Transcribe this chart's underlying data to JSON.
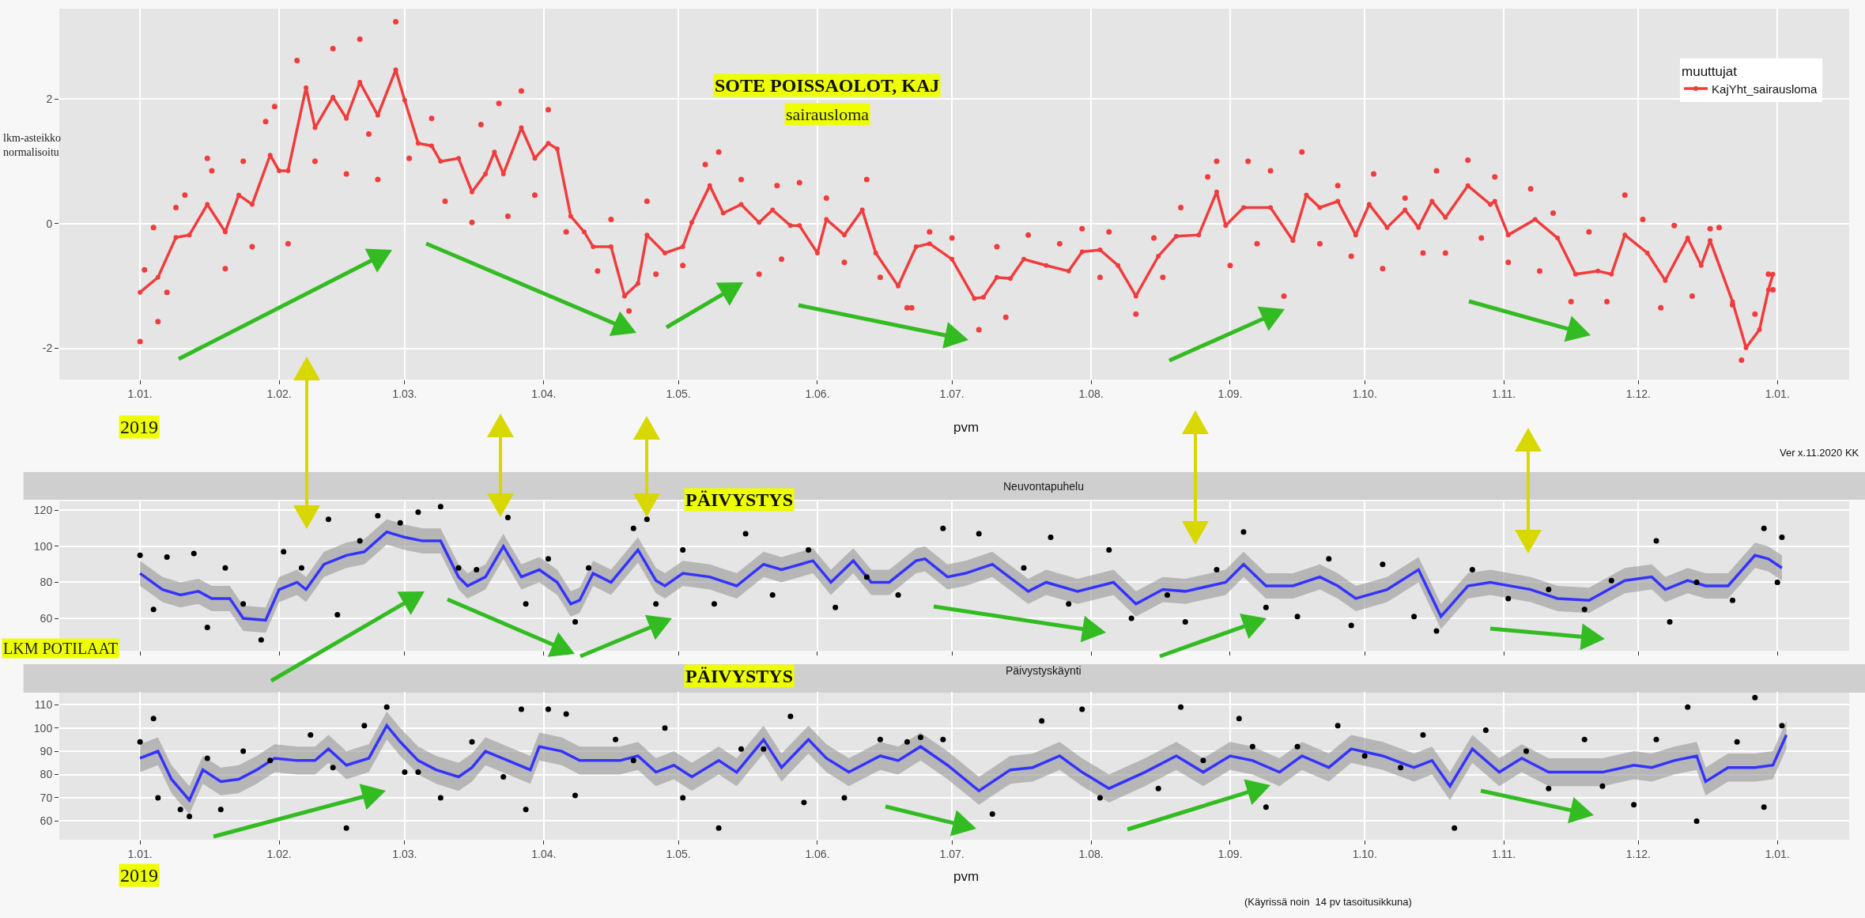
{
  "chart_data": [
    {
      "type": "line",
      "title": "SOTE POISSAOLOT, KAJ",
      "subtitle": "sairausloma",
      "xlabel": "pvm",
      "ylabel": "lkm-asteikko\nnormalisoitu",
      "legend_title": "muuttujat",
      "annotations": [
        "2019",
        "Ver x.11.2020 KK"
      ],
      "xlim": [
        "2018-12-14",
        "2020-01-17"
      ],
      "ylim": [
        -2.5,
        3.45
      ],
      "yticks": [
        -2,
        0,
        2
      ],
      "xticks": [
        {
          "value": "2019-01-01",
          "label": "1.01."
        },
        {
          "value": "2019-02-01",
          "label": "1.02."
        },
        {
          "value": "2019-03-01",
          "label": "1.03."
        },
        {
          "value": "2019-04-01",
          "label": "1.04."
        },
        {
          "value": "2019-05-01",
          "label": "1.05."
        },
        {
          "value": "2019-06-01",
          "label": "1.06."
        },
        {
          "value": "2019-07-01",
          "label": "1.07."
        },
        {
          "value": "2019-08-01",
          "label": "1.08."
        },
        {
          "value": "2019-09-01",
          "label": "1.09."
        },
        {
          "value": "2019-10-01",
          "label": "1.10."
        },
        {
          "value": "2019-11-01",
          "label": "1.11."
        },
        {
          "value": "2019-12-01",
          "label": "1.12."
        },
        {
          "value": "2020-01-01",
          "label": "1.01."
        }
      ],
      "grid": true,
      "legend": "top right",
      "series": [
        {
          "type": "scatter",
          "marker": "circle",
          "color": "#f03c3c",
          "x": [
            "2019-01-01",
            "2019-01-02",
            "2019-01-04",
            "2019-01-05",
            "2019-01-07",
            "2019-01-09",
            "2019-01-11",
            "2019-01-16",
            "2019-01-17",
            "2019-01-20",
            "2019-01-24",
            "2019-01-26",
            "2019-01-29",
            "2019-01-31",
            "2019-02-03",
            "2019-02-05",
            "2019-02-09",
            "2019-02-13",
            "2019-02-16",
            "2019-02-19",
            "2019-02-21",
            "2019-02-23",
            "2019-02-27",
            "2019-03-02",
            "2019-03-07",
            "2019-03-10",
            "2019-03-16",
            "2019-03-18",
            "2019-03-22",
            "2019-03-24",
            "2019-03-27",
            "2019-03-30",
            "2019-04-02",
            "2019-04-06",
            "2019-04-13",
            "2019-04-16",
            "2019-04-20",
            "2019-04-24",
            "2019-04-26",
            "2019-05-02",
            "2019-05-07",
            "2019-05-10",
            "2019-05-15",
            "2019-05-19",
            "2019-05-23",
            "2019-05-24",
            "2019-05-28",
            "2019-06-03",
            "2019-06-07",
            "2019-06-12",
            "2019-06-15",
            "2019-06-21",
            "2019-06-22",
            "2019-06-26",
            "2019-07-01",
            "2019-07-07",
            "2019-07-11",
            "2019-07-13",
            "2019-07-18",
            "2019-07-25",
            "2019-07-30",
            "2019-08-03",
            "2019-08-05",
            "2019-08-11",
            "2019-08-15",
            "2019-08-17",
            "2019-08-21",
            "2019-08-27",
            "2019-08-29",
            "2019-09-01",
            "2019-09-05",
            "2019-09-07",
            "2019-09-10",
            "2019-09-13",
            "2019-09-17",
            "2019-09-21",
            "2019-09-25",
            "2019-09-28",
            "2019-10-03",
            "2019-10-05",
            "2019-10-10",
            "2019-10-14",
            "2019-10-17",
            "2019-10-19",
            "2019-10-24",
            "2019-10-27",
            "2019-10-30",
            "2019-11-02",
            "2019-11-07",
            "2019-11-09",
            "2019-11-12",
            "2019-11-16",
            "2019-11-20",
            "2019-11-24",
            "2019-11-28",
            "2019-12-02",
            "2019-12-06",
            "2019-12-09",
            "2019-12-13",
            "2019-12-17",
            "2019-12-19",
            "2019-12-22",
            "2019-12-24",
            "2019-12-27",
            "2019-12-30",
            "2019-12-31"
          ],
          "values": [
            -1.89,
            -0.74,
            -0.06,
            -1.57,
            -1.1,
            0.26,
            0.46,
            1.05,
            0.85,
            -0.72,
            1.0,
            -0.37,
            1.64,
            1.88,
            -0.32,
            2.62,
            1.0,
            2.81,
            0.8,
            2.96,
            1.44,
            0.71,
            3.24,
            1.05,
            1.69,
            0.36,
            0.02,
            1.59,
            1.93,
            0.12,
            2.13,
            0.46,
            1.83,
            -0.13,
            -0.76,
            0.07,
            -1.4,
            0.36,
            -0.81,
            -0.67,
            0.95,
            1.15,
            0.71,
            -0.81,
            0.61,
            -0.57,
            0.66,
            0.41,
            -0.62,
            0.71,
            -0.86,
            -1.35,
            -1.35,
            -0.13,
            -0.23,
            -1.7,
            -0.37,
            -1.5,
            -0.18,
            -0.32,
            -0.08,
            -0.86,
            -0.13,
            -1.45,
            -0.23,
            -0.86,
            0.26,
            0.75,
            1.0,
            -0.67,
            1.0,
            -0.32,
            0.85,
            -1.16,
            1.15,
            -0.32,
            0.61,
            -0.52,
            0.8,
            -0.72,
            0.41,
            -0.47,
            0.85,
            -0.47,
            1.02,
            -0.23,
            0.75,
            -0.62,
            0.56,
            -0.76,
            0.17,
            -1.25,
            -0.13,
            -1.25,
            0.46,
            0.07,
            -1.35,
            -0.03,
            -1.16,
            -0.08,
            -0.06,
            -1.3,
            -2.19,
            -1.45,
            -0.81,
            -1.06
          ]
        },
        {
          "type": "line",
          "name": "KajYht_sairausloma",
          "marker": "circle",
          "color": "#f03c3c",
          "x": [
            "2019-01-01",
            "2019-01-05",
            "2019-01-09",
            "2019-01-12",
            "2019-01-16",
            "2019-01-20",
            "2019-01-23",
            "2019-01-26",
            "2019-01-30",
            "2019-02-01",
            "2019-02-03",
            "2019-02-07",
            "2019-02-09",
            "2019-02-13",
            "2019-02-16",
            "2019-02-19",
            "2019-02-23",
            "2019-02-27",
            "2019-03-01",
            "2019-03-04",
            "2019-03-07",
            "2019-03-09",
            "2019-03-13",
            "2019-03-16",
            "2019-03-19",
            "2019-03-21",
            "2019-03-23",
            "2019-03-27",
            "2019-03-30",
            "2019-04-02",
            "2019-04-04",
            "2019-04-07",
            "2019-04-10",
            "2019-04-12",
            "2019-04-16",
            "2019-04-19",
            "2019-04-22",
            "2019-04-24",
            "2019-04-28",
            "2019-05-02",
            "2019-05-04",
            "2019-05-08",
            "2019-05-11",
            "2019-05-15",
            "2019-05-19",
            "2019-05-22",
            "2019-05-26",
            "2019-05-28",
            "2019-06-01",
            "2019-06-03",
            "2019-06-07",
            "2019-06-11",
            "2019-06-14",
            "2019-06-19",
            "2019-06-23",
            "2019-06-26",
            "2019-07-01",
            "2019-07-06",
            "2019-07-08",
            "2019-07-11",
            "2019-07-14",
            "2019-07-17",
            "2019-07-22",
            "2019-07-27",
            "2019-07-30",
            "2019-08-03",
            "2019-08-07",
            "2019-08-11",
            "2019-08-16",
            "2019-08-20",
            "2019-08-25",
            "2019-08-29",
            "2019-08-31",
            "2019-09-04",
            "2019-09-10",
            "2019-09-15",
            "2019-09-18",
            "2019-09-21",
            "2019-09-25",
            "2019-09-29",
            "2019-10-02",
            "2019-10-06",
            "2019-10-10",
            "2019-10-13",
            "2019-10-16",
            "2019-10-19",
            "2019-10-24",
            "2019-10-29",
            "2019-10-30",
            "2019-11-02",
            "2019-11-08",
            "2019-11-13",
            "2019-11-17",
            "2019-11-22",
            "2019-11-25",
            "2019-11-28",
            "2019-12-03",
            "2019-12-07",
            "2019-12-12",
            "2019-12-15",
            "2019-12-17",
            "2019-12-22",
            "2019-12-25",
            "2019-12-28",
            "2019-12-30",
            "2019-12-31"
          ],
          "values": [
            -1.1,
            -0.86,
            -0.22,
            -0.18,
            0.31,
            -0.13,
            0.46,
            0.31,
            1.1,
            0.85,
            0.85,
            2.18,
            1.54,
            2.03,
            1.69,
            2.27,
            1.74,
            2.47,
            1.98,
            1.29,
            1.25,
            1.0,
            1.05,
            0.51,
            0.8,
            1.15,
            0.8,
            1.54,
            1.05,
            1.29,
            1.2,
            0.12,
            -0.13,
            -0.37,
            -0.37,
            -1.16,
            -0.96,
            -0.18,
            -0.47,
            -0.37,
            0.02,
            0.61,
            0.17,
            0.31,
            0.02,
            0.22,
            -0.03,
            -0.03,
            -0.47,
            0.07,
            -0.18,
            0.22,
            -0.47,
            -1.0,
            -0.37,
            -0.32,
            -0.57,
            -1.2,
            -1.18,
            -0.86,
            -0.88,
            -0.57,
            -0.67,
            -0.76,
            -0.45,
            -0.42,
            -0.67,
            -1.16,
            -0.52,
            -0.2,
            -0.18,
            0.51,
            -0.03,
            0.26,
            0.26,
            -0.27,
            0.46,
            0.26,
            0.36,
            -0.18,
            0.31,
            -0.06,
            0.22,
            -0.06,
            0.36,
            0.1,
            0.61,
            0.31,
            0.36,
            -0.18,
            0.07,
            -0.23,
            -0.81,
            -0.76,
            -0.81,
            -0.18,
            -0.47,
            -0.91,
            -0.23,
            -0.67,
            -0.27,
            -1.25,
            -1.99,
            -1.7,
            -1.06,
            -0.81
          ]
        }
      ]
    },
    {
      "type": "line",
      "title": "PÄIVYSTYS",
      "subtitle": "Neuvontapuhelu",
      "ylabel": "LKM POTILAAT",
      "xlim": [
        "2018-12-14",
        "2020-01-17"
      ],
      "ylim": [
        42,
        125
      ],
      "yticks": [
        60,
        80,
        100,
        120
      ],
      "tick_labels": "y",
      "xticks": [
        {
          "value": "2019-01-01",
          "label": null
        },
        {
          "value": "2019-02-01",
          "label": null
        },
        {
          "value": "2019-03-01",
          "label": null
        },
        {
          "value": "2019-04-01",
          "label": null
        },
        {
          "value": "2019-05-01",
          "label": null
        },
        {
          "value": "2019-06-01",
          "label": null
        },
        {
          "value": "2019-07-01",
          "label": null
        },
        {
          "value": "2019-08-01",
          "label": null
        },
        {
          "value": "2019-09-01",
          "label": null
        },
        {
          "value": "2019-10-01",
          "label": null
        },
        {
          "value": "2019-11-01",
          "label": null
        },
        {
          "value": "2019-12-01",
          "label": null
        },
        {
          "value": "2020-01-01",
          "label": null
        }
      ],
      "grid": true,
      "series": [
        {
          "type": "line",
          "color": "#3333ff",
          "x": [
            "2019-01-01",
            "2019-01-06",
            "2019-01-10",
            "2019-01-14",
            "2019-01-17",
            "2019-01-21",
            "2019-01-24",
            "2019-01-29",
            "2019-02-01",
            "2019-02-05",
            "2019-02-07",
            "2019-02-11",
            "2019-02-16",
            "2019-02-20",
            "2019-02-25",
            "2019-03-01",
            "2019-03-05",
            "2019-03-09",
            "2019-03-13",
            "2019-03-15",
            "2019-03-19",
            "2019-03-23",
            "2019-03-27",
            "2019-03-31",
            "2019-04-04",
            "2019-04-07",
            "2019-04-09",
            "2019-04-12",
            "2019-04-16",
            "2019-04-22",
            "2019-04-26",
            "2019-04-28",
            "2019-05-02",
            "2019-05-08",
            "2019-05-14",
            "2019-05-20",
            "2019-05-24",
            "2019-05-31",
            "2019-06-04",
            "2019-06-09",
            "2019-06-13",
            "2019-06-17",
            "2019-06-23",
            "2019-06-25",
            "2019-06-30",
            "2019-07-04",
            "2019-07-10",
            "2019-07-18",
            "2019-07-22",
            "2019-07-29",
            "2019-08-06",
            "2019-08-11",
            "2019-08-17",
            "2019-08-22",
            "2019-08-31",
            "2019-09-04",
            "2019-09-09",
            "2019-09-15",
            "2019-09-21",
            "2019-09-25",
            "2019-09-29",
            "2019-10-06",
            "2019-10-13",
            "2019-10-18",
            "2019-10-24",
            "2019-10-29",
            "2019-11-07",
            "2019-11-13",
            "2019-11-20",
            "2019-11-28",
            "2019-12-04",
            "2019-12-07",
            "2019-12-12",
            "2019-12-16",
            "2019-12-21",
            "2019-12-27",
            "2019-12-30",
            "2020-01-02"
          ],
          "values": [
            85,
            76,
            73,
            75,
            71,
            71,
            60,
            59,
            76,
            80,
            76,
            90,
            95,
            97,
            108,
            105,
            103,
            103,
            83,
            78,
            83,
            100,
            83,
            87,
            80,
            68,
            70,
            85,
            80,
            98,
            81,
            78,
            85,
            83,
            78,
            90,
            87,
            92,
            80,
            92,
            80,
            80,
            92,
            93,
            83,
            85,
            90,
            75,
            80,
            75,
            80,
            68,
            76,
            75,
            80,
            90,
            78,
            78,
            83,
            78,
            71,
            76,
            87,
            61,
            78,
            80,
            76,
            71,
            70,
            81,
            83,
            76,
            81,
            78,
            78,
            95,
            93,
            88
          ],
          "lower": [
            78,
            69,
            66,
            68,
            64,
            64,
            53,
            52,
            69,
            73,
            69,
            83,
            88,
            90,
            101,
            98,
            96,
            96,
            76,
            71,
            76,
            93,
            76,
            80,
            73,
            61,
            63,
            78,
            73,
            91,
            74,
            71,
            78,
            76,
            71,
            83,
            80,
            85,
            73,
            85,
            73,
            73,
            85,
            86,
            76,
            78,
            83,
            68,
            73,
            68,
            73,
            61,
            69,
            68,
            73,
            83,
            71,
            71,
            76,
            71,
            64,
            69,
            80,
            54,
            71,
            73,
            69,
            64,
            63,
            74,
            76,
            69,
            74,
            71,
            71,
            88,
            86,
            81
          ],
          "upper": [
            92,
            83,
            80,
            82,
            78,
            78,
            67,
            66,
            83,
            87,
            83,
            97,
            102,
            104,
            115,
            112,
            110,
            110,
            90,
            85,
            90,
            107,
            90,
            94,
            87,
            75,
            77,
            92,
            87,
            105,
            88,
            85,
            92,
            90,
            85,
            97,
            94,
            99,
            87,
            99,
            87,
            87,
            99,
            100,
            90,
            92,
            97,
            82,
            87,
            82,
            87,
            75,
            83,
            82,
            87,
            97,
            85,
            85,
            90,
            85,
            78,
            83,
            94,
            68,
            85,
            87,
            83,
            78,
            77,
            88,
            90,
            83,
            88,
            85,
            85,
            102,
            100,
            95
          ]
        },
        {
          "type": "scatter",
          "marker": "circle",
          "color": "#000000",
          "x": [
            "2019-01-01",
            "2019-01-04",
            "2019-01-07",
            "2019-01-13",
            "2019-01-16",
            "2019-01-20",
            "2019-01-24",
            "2019-01-28",
            "2019-02-02",
            "2019-02-06",
            "2019-02-12",
            "2019-02-14",
            "2019-02-19",
            "2019-02-23",
            "2019-02-28",
            "2019-03-04",
            "2019-03-09",
            "2019-03-13",
            "2019-03-17",
            "2019-03-24",
            "2019-03-28",
            "2019-04-02",
            "2019-04-08",
            "2019-04-11",
            "2019-04-21",
            "2019-04-24",
            "2019-04-26",
            "2019-05-02",
            "2019-05-09",
            "2019-05-16",
            "2019-05-22",
            "2019-05-30",
            "2019-06-05",
            "2019-06-12",
            "2019-06-19",
            "2019-06-29",
            "2019-07-07",
            "2019-07-17",
            "2019-07-23",
            "2019-07-27",
            "2019-08-05",
            "2019-08-10",
            "2019-08-18",
            "2019-08-22",
            "2019-08-29",
            "2019-09-04",
            "2019-09-09",
            "2019-09-16",
            "2019-09-23",
            "2019-09-28",
            "2019-10-05",
            "2019-10-12",
            "2019-10-17",
            "2019-10-25",
            "2019-11-02",
            "2019-11-11",
            "2019-11-19",
            "2019-11-25",
            "2019-12-05",
            "2019-12-08",
            "2019-12-14",
            "2019-12-22",
            "2019-12-29",
            "2020-01-01",
            "2020-01-02"
          ],
          "values": [
            95,
            65,
            94,
            96,
            55,
            88,
            68,
            48,
            97,
            88,
            115,
            62,
            103,
            117,
            113,
            119,
            122,
            88,
            87,
            116,
            68,
            93,
            58,
            88,
            110,
            115,
            68,
            98,
            68,
            107,
            73,
            98,
            66,
            83,
            73,
            110,
            107,
            88,
            105,
            68,
            98,
            60,
            73,
            58,
            87,
            108,
            66,
            61,
            93,
            56,
            90,
            61,
            53,
            87,
            71,
            76,
            65,
            81,
            103,
            58,
            80,
            70,
            110,
            80,
            105
          ]
        }
      ]
    },
    {
      "type": "line",
      "title": "PÄIVYSTYS",
      "subtitle": "Päivystyskäynti",
      "xlabel": "pvm",
      "annotations": [
        "2019",
        "(Käyrissä noin  14 pv tasoitusikkuna)"
      ],
      "xlim": [
        "2018-12-14",
        "2020-01-17"
      ],
      "ylim": [
        52,
        115.5
      ],
      "yticks": [
        60,
        70,
        80,
        90,
        100,
        110
      ],
      "xticks": [
        {
          "value": "2019-01-01",
          "label": "1.01."
        },
        {
          "value": "2019-02-01",
          "label": "1.02."
        },
        {
          "value": "2019-03-01",
          "label": "1.03."
        },
        {
          "value": "2019-04-01",
          "label": "1.04."
        },
        {
          "value": "2019-05-01",
          "label": "1.05."
        },
        {
          "value": "2019-06-01",
          "label": "1.06."
        },
        {
          "value": "2019-07-01",
          "label": "1.07."
        },
        {
          "value": "2019-08-01",
          "label": "1.08."
        },
        {
          "value": "2019-09-01",
          "label": "1.09."
        },
        {
          "value": "2019-10-01",
          "label": "1.10."
        },
        {
          "value": "2019-11-01",
          "label": "1.11."
        },
        {
          "value": "2019-12-01",
          "label": "1.12."
        },
        {
          "value": "2020-01-01",
          "label": "1.01."
        }
      ],
      "grid": true,
      "series": [
        {
          "type": "line",
          "color": "#3333ff",
          "x": [
            "2019-01-01",
            "2019-01-05",
            "2019-01-08",
            "2019-01-12",
            "2019-01-15",
            "2019-01-19",
            "2019-01-23",
            "2019-01-27",
            "2019-01-31",
            "2019-02-05",
            "2019-02-09",
            "2019-02-12",
            "2019-02-16",
            "2019-02-21",
            "2019-02-25",
            "2019-02-28",
            "2019-03-04",
            "2019-03-08",
            "2019-03-13",
            "2019-03-16",
            "2019-03-19",
            "2019-03-24",
            "2019-03-29",
            "2019-03-31",
            "2019-04-05",
            "2019-04-09",
            "2019-04-13",
            "2019-04-18",
            "2019-04-22",
            "2019-04-26",
            "2019-04-30",
            "2019-05-04",
            "2019-05-10",
            "2019-05-14",
            "2019-05-20",
            "2019-05-24",
            "2019-05-30",
            "2019-06-03",
            "2019-06-08",
            "2019-06-15",
            "2019-06-19",
            "2019-06-24",
            "2019-06-30",
            "2019-07-07",
            "2019-07-14",
            "2019-07-19",
            "2019-07-25",
            "2019-07-30",
            "2019-08-05",
            "2019-08-13",
            "2019-08-20",
            "2019-08-26",
            "2019-09-01",
            "2019-09-06",
            "2019-09-12",
            "2019-09-17",
            "2019-09-23",
            "2019-09-28",
            "2019-10-05",
            "2019-10-12",
            "2019-10-16",
            "2019-10-20",
            "2019-10-25",
            "2019-10-31",
            "2019-11-05",
            "2019-11-11",
            "2019-11-16",
            "2019-11-23",
            "2019-11-30",
            "2019-12-04",
            "2019-12-09",
            "2019-12-14",
            "2019-12-16",
            "2019-12-21",
            "2019-12-27",
            "2019-12-31",
            "2020-01-03"
          ],
          "values": [
            87,
            90,
            78,
            69,
            82,
            77,
            78,
            82,
            87,
            86,
            86,
            91,
            84,
            87,
            101,
            94,
            86,
            82,
            79,
            83,
            90,
            86,
            82,
            92,
            90,
            86,
            86,
            86,
            88,
            81,
            84,
            79,
            86,
            81,
            95,
            83,
            95,
            87,
            81,
            88,
            86,
            92,
            84,
            73,
            82,
            83,
            88,
            81,
            74,
            81,
            88,
            81,
            88,
            86,
            81,
            88,
            83,
            91,
            88,
            83,
            86,
            75,
            91,
            81,
            87,
            81,
            81,
            81,
            84,
            83,
            86,
            88,
            77,
            83,
            83,
            84,
            97
          ],
          "lower": [
            81,
            84,
            72,
            63,
            76,
            71,
            72,
            76,
            81,
            80,
            80,
            85,
            78,
            81,
            95,
            88,
            80,
            76,
            73,
            77,
            84,
            80,
            76,
            86,
            84,
            80,
            80,
            80,
            82,
            75,
            78,
            73,
            80,
            75,
            89,
            77,
            89,
            81,
            75,
            82,
            80,
            86,
            78,
            67,
            76,
            77,
            82,
            75,
            68,
            75,
            82,
            75,
            82,
            80,
            75,
            82,
            77,
            85,
            82,
            77,
            80,
            69,
            85,
            75,
            81,
            75,
            75,
            75,
            78,
            77,
            80,
            82,
            71,
            77,
            77,
            78,
            91
          ],
          "upper": [
            93,
            96,
            84,
            75,
            88,
            83,
            84,
            88,
            93,
            92,
            92,
            97,
            90,
            93,
            107,
            100,
            92,
            88,
            85,
            89,
            96,
            92,
            88,
            98,
            96,
            92,
            92,
            92,
            94,
            87,
            90,
            85,
            92,
            87,
            101,
            89,
            101,
            93,
            87,
            94,
            92,
            98,
            90,
            79,
            88,
            89,
            94,
            87,
            80,
            87,
            94,
            87,
            94,
            92,
            87,
            94,
            89,
            97,
            94,
            89,
            92,
            81,
            97,
            87,
            93,
            87,
            87,
            87,
            90,
            89,
            92,
            94,
            83,
            89,
            89,
            90,
            103
          ]
        },
        {
          "type": "scatter",
          "marker": "circle",
          "color": "#000000",
          "x": [
            "2019-01-01",
            "2019-01-04",
            "2019-01-05",
            "2019-01-10",
            "2019-01-12",
            "2019-01-16",
            "2019-01-19",
            "2019-01-24",
            "2019-01-30",
            "2019-02-08",
            "2019-02-13",
            "2019-02-16",
            "2019-02-20",
            "2019-02-25",
            "2019-03-01",
            "2019-03-04",
            "2019-03-09",
            "2019-03-16",
            "2019-03-23",
            "2019-03-27",
            "2019-03-28",
            "2019-04-02",
            "2019-04-06",
            "2019-04-08",
            "2019-04-17",
            "2019-04-21",
            "2019-04-28",
            "2019-05-02",
            "2019-05-10",
            "2019-05-15",
            "2019-05-20",
            "2019-05-26",
            "2019-05-29",
            "2019-06-07",
            "2019-06-15",
            "2019-06-21",
            "2019-06-24",
            "2019-06-29",
            "2019-07-10",
            "2019-07-21",
            "2019-07-30",
            "2019-08-03",
            "2019-08-16",
            "2019-08-21",
            "2019-08-26",
            "2019-09-03",
            "2019-09-06",
            "2019-09-09",
            "2019-09-16",
            "2019-09-25",
            "2019-10-01",
            "2019-10-09",
            "2019-10-14",
            "2019-10-21",
            "2019-10-28",
            "2019-11-06",
            "2019-11-11",
            "2019-11-19",
            "2019-11-23",
            "2019-11-30",
            "2019-12-05",
            "2019-12-12",
            "2019-12-14",
            "2019-12-23",
            "2019-12-27",
            "2019-12-29",
            "2020-01-02"
          ],
          "values": [
            94,
            104,
            70,
            65,
            62,
            87,
            65,
            90,
            86,
            97,
            83,
            57,
            101,
            109,
            81,
            81,
            70,
            94,
            79,
            108,
            65,
            108,
            106,
            71,
            95,
            86,
            100,
            70,
            57,
            91,
            91,
            105,
            68,
            70,
            95,
            94,
            96,
            95,
            63,
            103,
            108,
            70,
            74,
            109,
            86,
            104,
            92,
            66,
            92,
            101,
            88,
            83,
            97,
            57,
            99,
            90,
            74,
            95,
            75,
            67,
            95,
            109,
            60,
            94,
            113,
            66,
            101
          ]
        }
      ]
    }
  ]
}
